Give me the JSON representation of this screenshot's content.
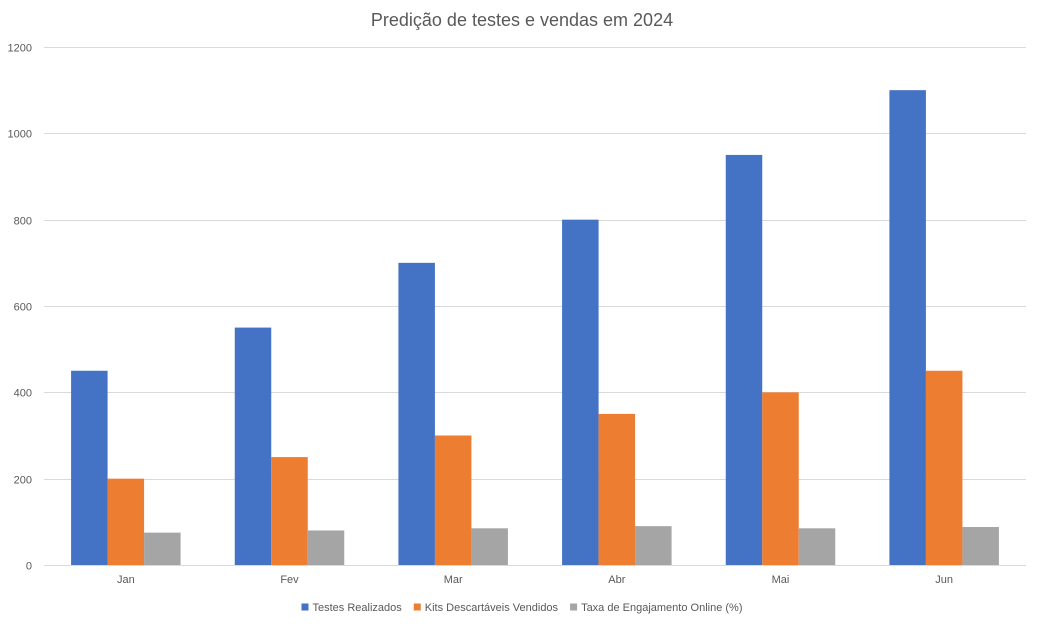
{
  "chart_data": {
    "type": "bar",
    "title": "Predição de testes e vendas em 2024",
    "xlabel": "",
    "ylabel": "",
    "categories": [
      "Jan",
      "Fev",
      "Mar",
      "Abr",
      "Mai",
      "Jun"
    ],
    "series": [
      {
        "name": "Testes Realizados",
        "color": "#4472C4",
        "values": [
          450,
          550,
          700,
          800,
          950,
          1100
        ]
      },
      {
        "name": "Kits Descartáveis Vendidos",
        "color": "#ED7D31",
        "values": [
          200,
          250,
          300,
          350,
          400,
          450
        ]
      },
      {
        "name": "Taxa de Engajamento Online (%)",
        "color": "#A5A5A5",
        "values": [
          75,
          80,
          85,
          90,
          85,
          88
        ]
      }
    ],
    "ylim": [
      0,
      1200
    ],
    "yticks": [
      0,
      200,
      400,
      600,
      800,
      1000,
      1200
    ],
    "grid": true,
    "legend_position": "bottom"
  }
}
